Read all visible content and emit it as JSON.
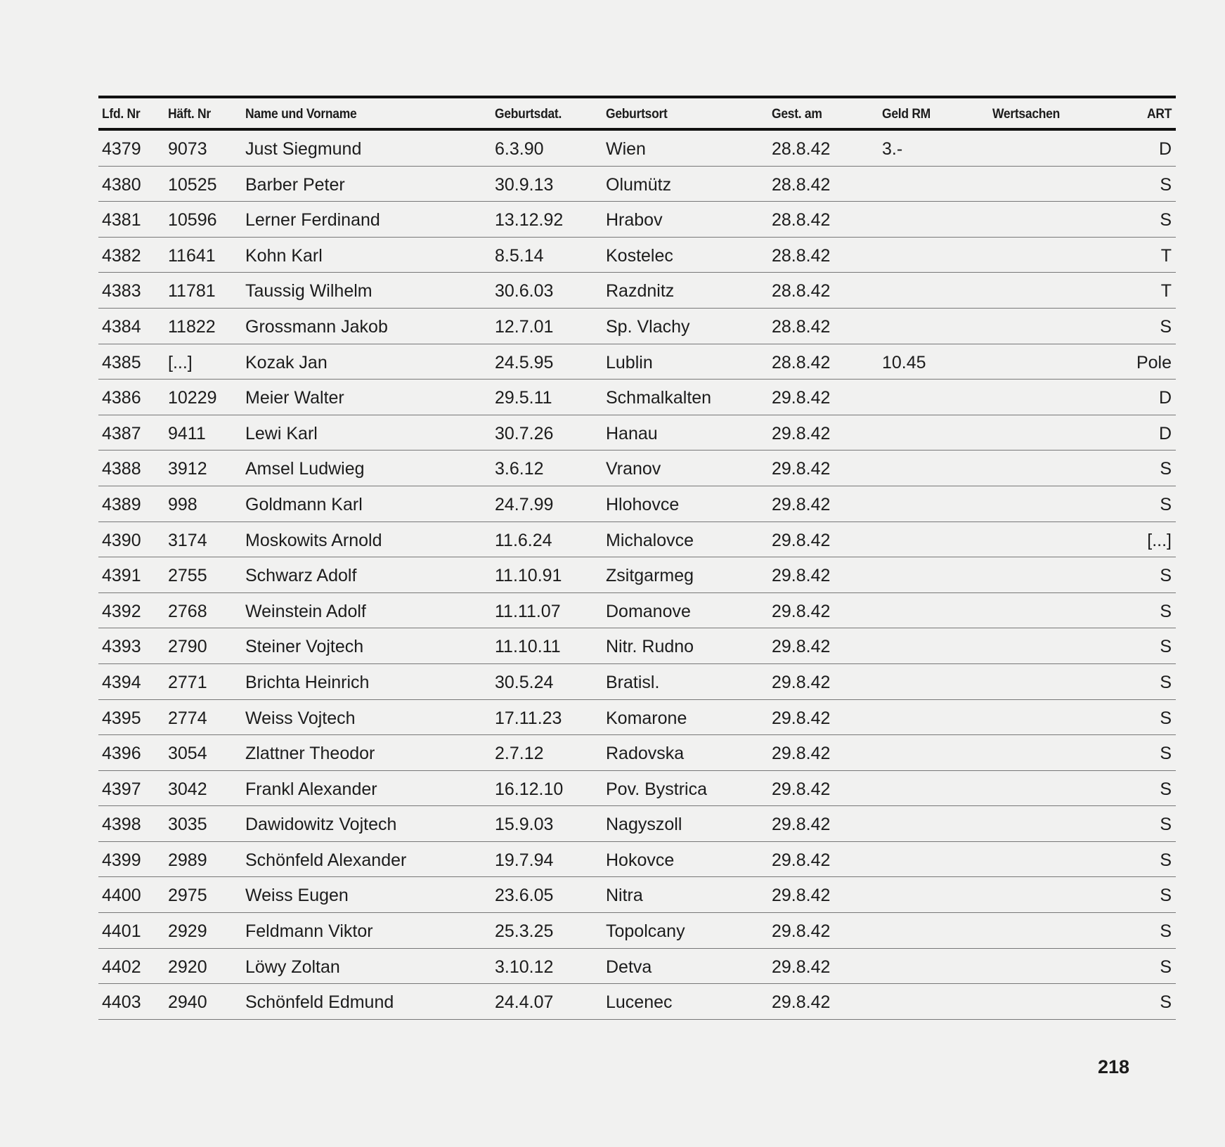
{
  "table": {
    "headers": [
      "Lfd. Nr",
      "Häft. Nr",
      "Name und Vorname",
      "Geburtsdat.",
      "Geburtsort",
      "Gest. am",
      "Geld RM",
      "Wertsachen",
      "ART"
    ],
    "rows": [
      [
        "4379",
        "9073",
        "Just Siegmund",
        "6.3.90",
        "Wien",
        "28.8.42",
        "3.-",
        "",
        "D"
      ],
      [
        "4380",
        "10525",
        "Barber Peter",
        "30.9.13",
        "Olumütz",
        "28.8.42",
        "",
        "",
        "S"
      ],
      [
        "4381",
        "10596",
        "Lerner Ferdinand",
        "13.12.92",
        "Hrabov",
        "28.8.42",
        "",
        "",
        "S"
      ],
      [
        "4382",
        "11641",
        "Kohn Karl",
        "8.5.14",
        "Kostelec",
        "28.8.42",
        "",
        "",
        "T"
      ],
      [
        "4383",
        "11781",
        "Taussig Wilhelm",
        "30.6.03",
        "Razdnitz",
        "28.8.42",
        "",
        "",
        "T"
      ],
      [
        "4384",
        "11822",
        "Grossmann Jakob",
        "12.7.01",
        "Sp. Vlachy",
        "28.8.42",
        "",
        "",
        "S"
      ],
      [
        "4385",
        "[...]",
        "Kozak Jan",
        "24.5.95",
        "Lublin",
        "28.8.42",
        "10.45",
        "",
        "Pole"
      ],
      [
        "4386",
        "10229",
        "Meier Walter",
        "29.5.11",
        "Schmalkalten",
        "29.8.42",
        "",
        "",
        "D"
      ],
      [
        "4387",
        "9411",
        "Lewi Karl",
        "30.7.26",
        "Hanau",
        "29.8.42",
        "",
        "",
        "D"
      ],
      [
        "4388",
        "3912",
        "Amsel Ludwieg",
        "3.6.12",
        "Vranov",
        "29.8.42",
        "",
        "",
        "S"
      ],
      [
        "4389",
        "998",
        "Goldmann Karl",
        "24.7.99",
        "Hlohovce",
        "29.8.42",
        "",
        "",
        "S"
      ],
      [
        "4390",
        "3174",
        "Moskowits Arnold",
        "11.6.24",
        "Michalovce",
        "29.8.42",
        "",
        "",
        "[...]"
      ],
      [
        "4391",
        "2755",
        "Schwarz Adolf",
        "11.10.91",
        "Zsitgarmeg",
        "29.8.42",
        "",
        "",
        "S"
      ],
      [
        "4392",
        "2768",
        "Weinstein Adolf",
        "11.11.07",
        "Domanove",
        "29.8.42",
        "",
        "",
        "S"
      ],
      [
        "4393",
        "2790",
        "Steiner Vojtech",
        "11.10.11",
        "Nitr. Rudno",
        "29.8.42",
        "",
        "",
        "S"
      ],
      [
        "4394",
        "2771",
        "Brichta Heinrich",
        "30.5.24",
        "Bratisl.",
        "29.8.42",
        "",
        "",
        "S"
      ],
      [
        "4395",
        "2774",
        "Weiss Vojtech",
        "17.11.23",
        "Komarone",
        "29.8.42",
        "",
        "",
        "S"
      ],
      [
        "4396",
        "3054",
        "Zlattner Theodor",
        "2.7.12",
        "Radovska",
        "29.8.42",
        "",
        "",
        "S"
      ],
      [
        "4397",
        "3042",
        "Frankl Alexander",
        "16.12.10",
        "Pov. Bystrica",
        "29.8.42",
        "",
        "",
        "S"
      ],
      [
        "4398",
        "3035",
        "Dawidowitz Vojtech",
        "15.9.03",
        "Nagyszoll",
        "29.8.42",
        "",
        "",
        "S"
      ],
      [
        "4399",
        "2989",
        "Schönfeld Alexander",
        "19.7.94",
        "Hokovce",
        "29.8.42",
        "",
        "",
        "S"
      ],
      [
        "4400",
        "2975",
        "Weiss Eugen",
        "23.6.05",
        "Nitra",
        "29.8.42",
        "",
        "",
        "S"
      ],
      [
        "4401",
        "2929",
        "Feldmann Viktor",
        "25.3.25",
        "Topolcany",
        "29.8.42",
        "",
        "",
        "S"
      ],
      [
        "4402",
        "2920",
        "Löwy Zoltan",
        "3.10.12",
        "Detva",
        "29.8.42",
        "",
        "",
        "S"
      ],
      [
        "4403",
        "2940",
        "Schönfeld Edmund",
        "24.4.07",
        "Lucenec",
        "29.8.42",
        "",
        "",
        "S"
      ]
    ]
  },
  "page_number": "218"
}
